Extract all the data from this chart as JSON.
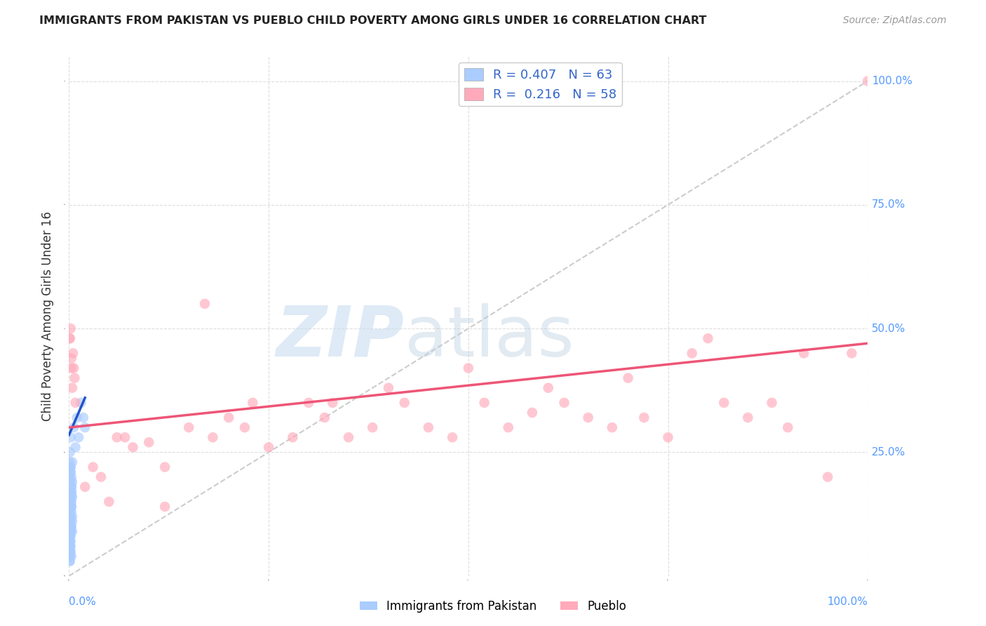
{
  "title": "IMMIGRANTS FROM PAKISTAN VS PUEBLO CHILD POVERTY AMONG GIRLS UNDER 16 CORRELATION CHART",
  "source": "Source: ZipAtlas.com",
  "tick_color": "#5599ff",
  "ylabel": "Child Poverty Among Girls Under 16",
  "xlim": [
    0.0,
    1.0
  ],
  "ylim": [
    0.0,
    1.05
  ],
  "xticks": [
    0.0,
    0.25,
    0.5,
    0.75,
    1.0
  ],
  "yticks": [
    0.0,
    0.25,
    0.5,
    0.75,
    1.0
  ],
  "xticklabels_left": [
    "0.0%",
    "",
    "",
    "",
    ""
  ],
  "xticklabels_right": [
    "",
    "",
    "",
    "",
    "100.0%"
  ],
  "yticklabels_right": [
    "",
    "25.0%",
    "50.0%",
    "75.0%",
    "100.0%"
  ],
  "background_color": "#ffffff",
  "grid_color": "#dddddd",
  "legend_label1": "R = 0.407   N = 63",
  "legend_label2": "R =  0.216   N = 58",
  "scatter_color1": "#aaccff",
  "scatter_color2": "#ffaabb",
  "trendline_color1": "#2255cc",
  "trendline_color2": "#ee5577",
  "diag_color": "#cccccc",
  "pakistan_x": [
    0.002,
    0.001,
    0.003,
    0.001,
    0.002,
    0.001,
    0.003,
    0.002,
    0.001,
    0.004,
    0.002,
    0.001,
    0.003,
    0.001,
    0.002,
    0.004,
    0.001,
    0.002,
    0.003,
    0.001,
    0.002,
    0.001,
    0.003,
    0.002,
    0.004,
    0.001,
    0.002,
    0.003,
    0.001,
    0.002,
    0.003,
    0.001,
    0.002,
    0.004,
    0.001,
    0.002,
    0.003,
    0.001,
    0.002,
    0.004,
    0.001,
    0.002,
    0.003,
    0.001,
    0.002,
    0.001,
    0.003,
    0.002,
    0.001,
    0.004,
    0.002,
    0.001,
    0.003,
    0.006,
    0.008,
    0.01,
    0.012,
    0.015,
    0.018,
    0.02,
    0.001,
    0.002,
    0.003
  ],
  "pakistan_y": [
    0.05,
    0.08,
    0.1,
    0.12,
    0.15,
    0.06,
    0.18,
    0.07,
    0.2,
    0.09,
    0.22,
    0.04,
    0.14,
    0.16,
    0.11,
    0.19,
    0.13,
    0.08,
    0.17,
    0.1,
    0.21,
    0.06,
    0.15,
    0.09,
    0.23,
    0.07,
    0.12,
    0.18,
    0.05,
    0.14,
    0.2,
    0.03,
    0.1,
    0.16,
    0.08,
    0.22,
    0.13,
    0.06,
    0.19,
    0.11,
    0.25,
    0.09,
    0.17,
    0.04,
    0.21,
    0.07,
    0.14,
    0.1,
    0.23,
    0.12,
    0.28,
    0.05,
    0.16,
    0.3,
    0.26,
    0.32,
    0.28,
    0.35,
    0.32,
    0.3,
    0.03,
    0.06,
    0.04
  ],
  "pueblo_x": [
    0.001,
    0.003,
    0.005,
    0.008,
    0.002,
    0.004,
    0.006,
    0.001,
    0.007,
    0.003,
    0.02,
    0.05,
    0.08,
    0.04,
    0.06,
    0.1,
    0.15,
    0.12,
    0.18,
    0.2,
    0.25,
    0.22,
    0.28,
    0.3,
    0.35,
    0.32,
    0.38,
    0.4,
    0.45,
    0.42,
    0.48,
    0.5,
    0.55,
    0.52,
    0.58,
    0.6,
    0.65,
    0.62,
    0.68,
    0.7,
    0.75,
    0.72,
    0.78,
    0.8,
    0.85,
    0.82,
    0.88,
    0.9,
    0.95,
    0.92,
    1.0,
    0.98,
    0.03,
    0.07,
    0.12,
    0.17,
    0.23,
    0.33
  ],
  "pueblo_y": [
    0.48,
    0.42,
    0.45,
    0.35,
    0.5,
    0.38,
    0.42,
    0.48,
    0.4,
    0.44,
    0.18,
    0.15,
    0.26,
    0.2,
    0.28,
    0.27,
    0.3,
    0.22,
    0.28,
    0.32,
    0.26,
    0.3,
    0.28,
    0.35,
    0.28,
    0.32,
    0.3,
    0.38,
    0.3,
    0.35,
    0.28,
    0.42,
    0.3,
    0.35,
    0.33,
    0.38,
    0.32,
    0.35,
    0.3,
    0.4,
    0.28,
    0.32,
    0.45,
    0.48,
    0.32,
    0.35,
    0.35,
    0.3,
    0.2,
    0.45,
    1.0,
    0.45,
    0.22,
    0.28,
    0.14,
    0.55,
    0.35,
    0.35
  ],
  "pk_trend_x": [
    0.0,
    0.02
  ],
  "pk_trend_y": [
    0.285,
    0.36
  ],
  "pu_trend_x": [
    0.0,
    1.0
  ],
  "pu_trend_y": [
    0.3,
    0.47
  ]
}
